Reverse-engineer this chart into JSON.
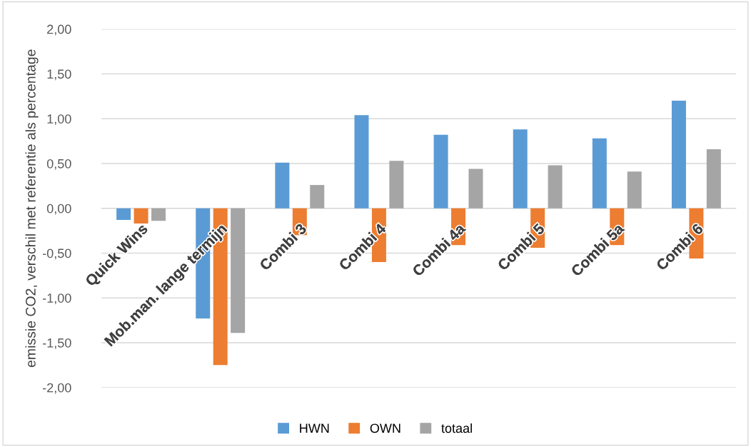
{
  "chart_data": {
    "type": "bar",
    "ylabel": "emissie CO2, verschil met referentie als percentage",
    "categories": [
      "Quick Wins",
      "Mob.man. lange termijn",
      "Combi 3",
      "Combi 4",
      "Combi 4a",
      "Combi 5",
      "Combi 5a",
      "Combi 6"
    ],
    "series": [
      {
        "name": "HWN",
        "color": "#5b9bd5",
        "values": [
          -0.13,
          -1.23,
          0.51,
          1.04,
          0.82,
          0.88,
          0.78,
          1.2
        ]
      },
      {
        "name": "OWN",
        "color": "#ed7d31",
        "values": [
          -0.17,
          -1.75,
          -0.3,
          -0.6,
          -0.41,
          -0.44,
          -0.41,
          -0.56
        ]
      },
      {
        "name": "totaal",
        "color": "#a5a5a5",
        "values": [
          -0.14,
          -1.39,
          0.26,
          0.53,
          0.44,
          0.48,
          0.41,
          0.66
        ]
      }
    ],
    "ylim": [
      -2,
      2
    ],
    "yticks": [
      {
        "value": -2,
        "label": "-2,00"
      },
      {
        "value": -1.5,
        "label": "-1,50"
      },
      {
        "value": -1,
        "label": "-1,00"
      },
      {
        "value": -0.5,
        "label": "-0,50"
      },
      {
        "value": 0,
        "label": "0,00"
      },
      {
        "value": 0.5,
        "label": "0,50"
      },
      {
        "value": 1,
        "label": "1,00"
      },
      {
        "value": 1.5,
        "label": "1,50"
      },
      {
        "value": 2,
        "label": "2,00"
      }
    ],
    "grid": "y",
    "legend": "bottom"
  }
}
